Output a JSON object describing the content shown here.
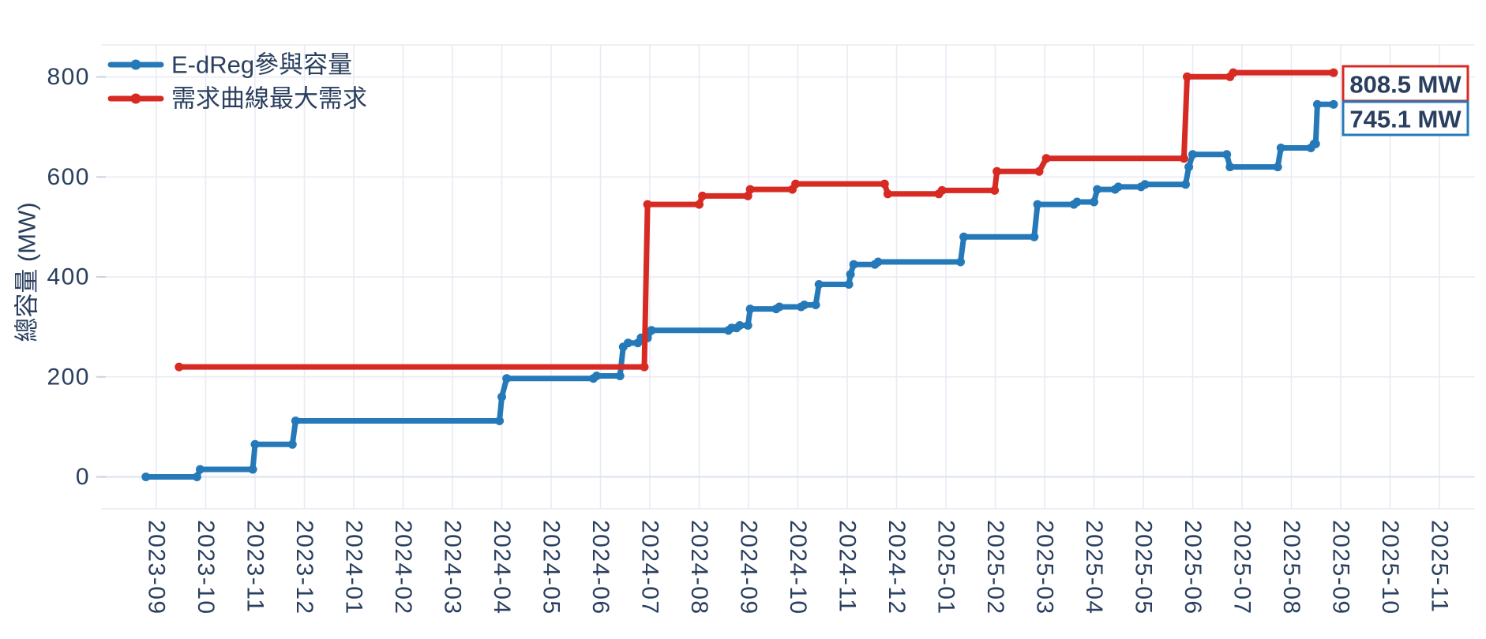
{
  "chart": {
    "y_axis": {
      "title": "總容量 (MW)",
      "tick_values": [
        0,
        200,
        400,
        600,
        800
      ],
      "tick_labels": [
        "0",
        "200",
        "400",
        "600",
        "800"
      ]
    },
    "x_axis": {
      "tick_labels": [
        "2023-09",
        "2023-10",
        "2023-11",
        "2023-12",
        "2024-01",
        "2024-02",
        "2024-03",
        "2024-04",
        "2024-05",
        "2024-06",
        "2024-07",
        "2024-08",
        "2024-09",
        "2024-10",
        "2024-11",
        "2024-12",
        "2025-01",
        "2025-02",
        "2025-03",
        "2025-04",
        "2025-05",
        "2025-06",
        "2025-07",
        "2025-08",
        "2025-09",
        "2025-10",
        "2025-11"
      ]
    },
    "legend": [
      {
        "label": "E-dReg參與容量",
        "color": "#2679b8"
      },
      {
        "label": "需求曲線最大需求",
        "color": "#d62a23"
      }
    ],
    "annotations": [
      {
        "text": "808.5 MW",
        "color": "#d62a23"
      },
      {
        "text": "745.1 MW",
        "color": "#2679b8"
      }
    ],
    "colors": {
      "blue": "#2679b8",
      "red": "#d62a23",
      "axis_text": "#2a3f5f",
      "gridline": "#e8ebf3",
      "background": "#ffffff"
    }
  },
  "chart_data": {
    "type": "line",
    "step_style": true,
    "title": "",
    "xlabel": "",
    "ylabel": "總容量 (MW)",
    "ylim": [
      0,
      860
    ],
    "x_range": [
      "2023-09",
      "2025-11"
    ],
    "grid": true,
    "legend_position": "top-left-inside",
    "series": [
      {
        "name": "E-dReg參與容量",
        "color": "#2679b8",
        "final_value_mw": 745.1,
        "points": [
          [
            "2023-08-25",
            0
          ],
          [
            "2023-09-26",
            0
          ],
          [
            "2023-09-28",
            15
          ],
          [
            "2023-10-30",
            15
          ],
          [
            "2023-11-01",
            65
          ],
          [
            "2023-11-24",
            65
          ],
          [
            "2023-11-26",
            112
          ],
          [
            "2024-03-30",
            112
          ],
          [
            "2024-04-01",
            160
          ],
          [
            "2024-04-04",
            197
          ],
          [
            "2024-05-27",
            197
          ],
          [
            "2024-05-29",
            202
          ],
          [
            "2024-06-13",
            202
          ],
          [
            "2024-06-15",
            260
          ],
          [
            "2024-06-18",
            268
          ],
          [
            "2024-06-24",
            268
          ],
          [
            "2024-06-26",
            278
          ],
          [
            "2024-06-30",
            278
          ],
          [
            "2024-07-02",
            293
          ],
          [
            "2024-08-19",
            293
          ],
          [
            "2024-08-21",
            298
          ],
          [
            "2024-08-24",
            298
          ],
          [
            "2024-08-26",
            303
          ],
          [
            "2024-08-31",
            303
          ],
          [
            "2024-09-02",
            336
          ],
          [
            "2024-09-18",
            336
          ],
          [
            "2024-09-20",
            340
          ],
          [
            "2024-10-03",
            340
          ],
          [
            "2024-10-05",
            344
          ],
          [
            "2024-10-12",
            344
          ],
          [
            "2024-10-14",
            385
          ],
          [
            "2024-11-02",
            385
          ],
          [
            "2024-11-03",
            405
          ],
          [
            "2024-11-05",
            425
          ],
          [
            "2024-11-18",
            425
          ],
          [
            "2024-11-20",
            430
          ],
          [
            "2025-01-10",
            430
          ],
          [
            "2025-01-12",
            480
          ],
          [
            "2025-02-25",
            480
          ],
          [
            "2025-02-27",
            545
          ],
          [
            "2025-03-19",
            545
          ],
          [
            "2025-03-21",
            550
          ],
          [
            "2025-04-01",
            550
          ],
          [
            "2025-04-03",
            575
          ],
          [
            "2025-04-14",
            575
          ],
          [
            "2025-04-16",
            580
          ],
          [
            "2025-04-30",
            580
          ],
          [
            "2025-05-02",
            585
          ],
          [
            "2025-05-27",
            585
          ],
          [
            "2025-05-29",
            620
          ],
          [
            "2025-06-01",
            645
          ],
          [
            "2025-06-22",
            645
          ],
          [
            "2025-06-24",
            620
          ],
          [
            "2025-07-23",
            620
          ],
          [
            "2025-07-25",
            658
          ],
          [
            "2025-08-13",
            658
          ],
          [
            "2025-08-15",
            666
          ],
          [
            "2025-08-16",
            666
          ],
          [
            "2025-08-17",
            745.1
          ],
          [
            "2025-08-27",
            745.1
          ]
        ]
      },
      {
        "name": "需求曲線最大需求",
        "color": "#d62a23",
        "final_value_mw": 808.5,
        "points": [
          [
            "2023-09-15",
            220
          ],
          [
            "2024-06-28",
            220
          ],
          [
            "2024-06-30",
            545
          ],
          [
            "2024-08-01",
            545
          ],
          [
            "2024-08-03",
            562
          ],
          [
            "2024-08-31",
            562
          ],
          [
            "2024-09-02",
            575
          ],
          [
            "2024-09-28",
            575
          ],
          [
            "2024-09-30",
            586
          ],
          [
            "2024-11-24",
            586
          ],
          [
            "2024-11-26",
            566
          ],
          [
            "2024-12-27",
            566
          ],
          [
            "2024-12-29",
            573
          ],
          [
            "2025-01-31",
            573
          ],
          [
            "2025-02-02",
            611
          ],
          [
            "2025-02-28",
            611
          ],
          [
            "2025-03-02",
            637
          ],
          [
            "2025-05-26",
            637
          ],
          [
            "2025-05-28",
            800.3
          ],
          [
            "2025-06-24",
            800.3
          ],
          [
            "2025-06-26",
            808.5
          ],
          [
            "2025-08-27",
            808.5
          ]
        ]
      }
    ]
  }
}
